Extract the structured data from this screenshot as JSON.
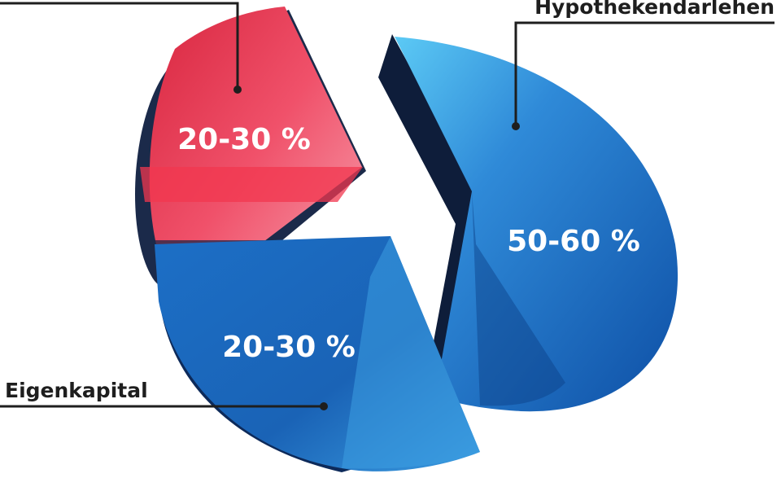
{
  "chart_data": {
    "type": "pie",
    "style": "3d-exploded",
    "slices": [
      {
        "name": "Hypothekendarlehen",
        "value_label": "50-60 %",
        "value_range": [
          50,
          60
        ],
        "color": "#2f7fd0"
      },
      {
        "name": "Eigenkapital",
        "value_label": "20-30 %",
        "value_range": [
          20,
          30
        ],
        "color": "#1f6ec2"
      },
      {
        "name": "",
        "value_label": "20-30 %",
        "value_range": [
          20,
          30
        ],
        "color": "#e53553"
      }
    ]
  },
  "colors": {
    "leader_line": "#1e1e1e",
    "text_dark": "#1e1e1e",
    "text_light": "#ffffff"
  }
}
